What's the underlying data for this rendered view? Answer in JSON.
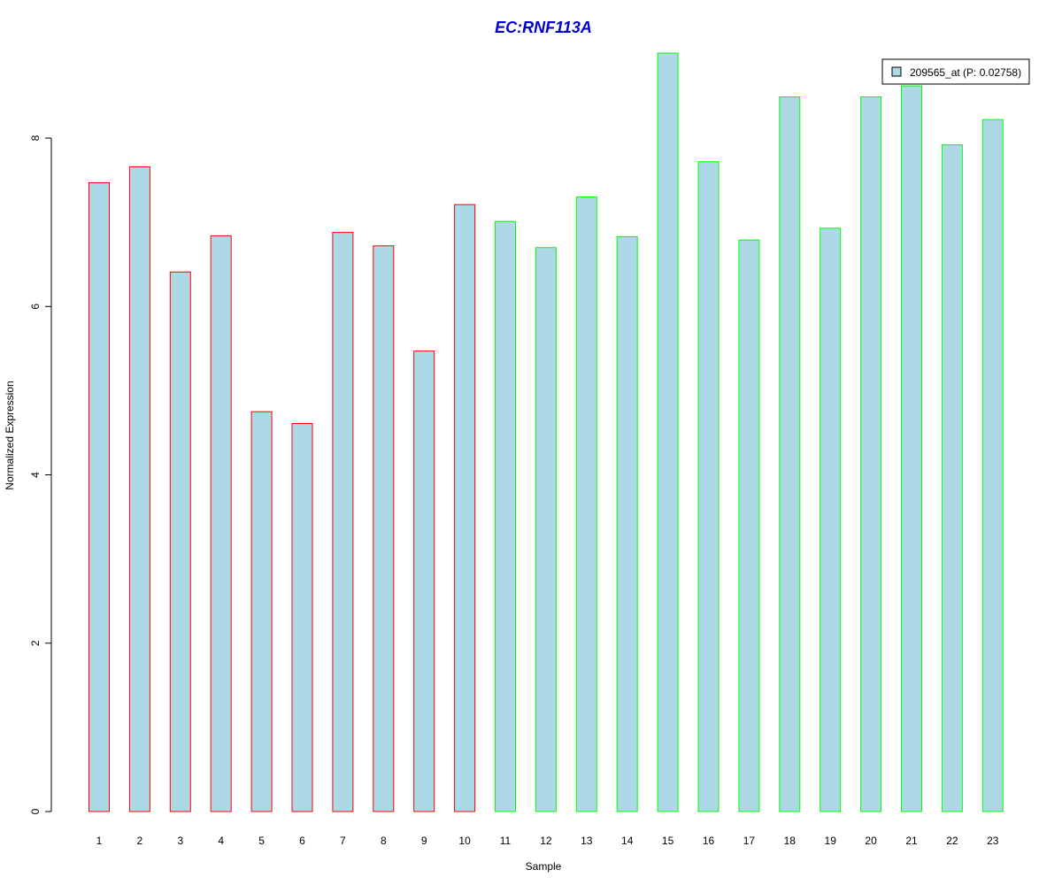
{
  "chart_data": {
    "type": "bar",
    "title": "EC:RNF113A",
    "xlabel": "Sample",
    "ylabel": "Normalized Expression",
    "categories": [
      "1",
      "2",
      "3",
      "4",
      "5",
      "6",
      "7",
      "8",
      "9",
      "10",
      "11",
      "12",
      "13",
      "14",
      "15",
      "16",
      "17",
      "18",
      "19",
      "20",
      "21",
      "22",
      "23"
    ],
    "series": [
      {
        "name": "209565_at (P: 0.02758)",
        "values": [
          7.47,
          7.66,
          6.41,
          6.84,
          4.75,
          4.61,
          6.88,
          6.72,
          5.47,
          7.21,
          7.01,
          6.7,
          7.3,
          6.83,
          9.01,
          7.72,
          6.79,
          8.49,
          6.93,
          8.49,
          8.62,
          7.92,
          8.22
        ]
      }
    ],
    "groups": [
      0,
      0,
      0,
      0,
      0,
      0,
      0,
      0,
      0,
      0,
      1,
      1,
      1,
      1,
      1,
      1,
      1,
      1,
      1,
      1,
      1,
      1,
      1
    ],
    "ylim": [
      0,
      9.01
    ],
    "yticks": [
      0,
      2,
      4,
      6,
      8
    ],
    "grid": false,
    "legend_position": "top-right",
    "colors": {
      "bar_fill": "#add8e6",
      "group_edges": [
        "#ff0000",
        "#00ff00"
      ],
      "title": "#0000cd",
      "axis": "#000000"
    }
  }
}
